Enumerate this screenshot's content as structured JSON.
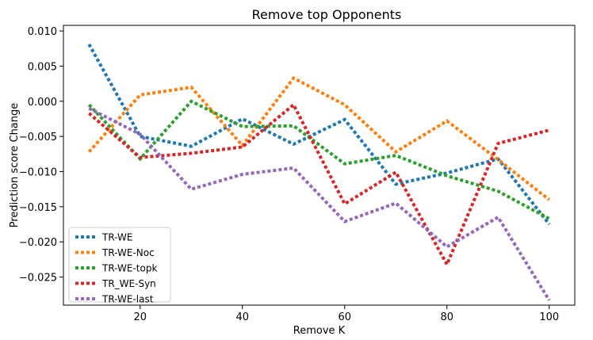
{
  "chart_data": {
    "type": "line",
    "title": "Remove top Opponents",
    "xlabel": "Remove K",
    "ylabel": "Prediction score Change",
    "x": [
      10,
      20,
      30,
      40,
      50,
      60,
      70,
      80,
      90,
      100
    ],
    "xlim": [
      5,
      105
    ],
    "ylim": [
      -0.029,
      0.0108
    ],
    "xticks": [
      20,
      40,
      60,
      80,
      100
    ],
    "yticks": [
      0.01,
      0.005,
      0.0,
      -0.005,
      -0.01,
      -0.015,
      -0.02,
      -0.025
    ],
    "ytick_labels": [
      "0.010",
      "0.005",
      "0.000",
      "−0.005",
      "−0.010",
      "−0.015",
      "−0.020",
      "−0.025"
    ],
    "grid": false,
    "legend_position": "lower left",
    "series": [
      {
        "name": "TR-WE",
        "color": "#1f77b4",
        "values": [
          0.0081,
          -0.005,
          -0.0064,
          -0.0025,
          -0.0061,
          -0.0026,
          -0.0118,
          -0.0102,
          -0.0082,
          -0.0175
        ]
      },
      {
        "name": "TR-WE-Noc",
        "color": "#ff7f0e",
        "values": [
          -0.0072,
          0.0009,
          0.002,
          -0.0063,
          0.0033,
          -0.0005,
          -0.0072,
          -0.0028,
          -0.0083,
          -0.014
        ]
      },
      {
        "name": "TR-WE-topk",
        "color": "#2ca02c",
        "values": [
          -0.0005,
          -0.0082,
          0.0,
          -0.0036,
          -0.0035,
          -0.0089,
          -0.0077,
          -0.0106,
          -0.0128,
          -0.0167
        ]
      },
      {
        "name": "TR_WE-Syn",
        "color": "#d62728",
        "values": [
          -0.0017,
          -0.008,
          -0.0074,
          -0.0065,
          -0.0005,
          -0.0146,
          -0.0101,
          -0.0232,
          -0.006,
          -0.0041
        ]
      },
      {
        "name": "TR-WE-last",
        "color": "#9467bd",
        "values": [
          -0.001,
          -0.0047,
          -0.0125,
          -0.0104,
          -0.0095,
          -0.0171,
          -0.0145,
          -0.0207,
          -0.0165,
          -0.0283
        ]
      }
    ]
  }
}
